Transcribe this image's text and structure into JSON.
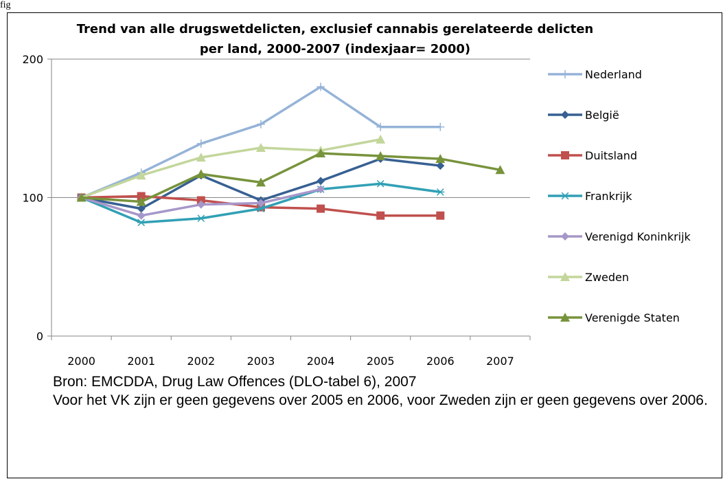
{
  "figure_label": "fig",
  "source": {
    "line1": "Bron: EMCDDA, Drug Law Offences (DLO-tabel 6), 2007",
    "line2": "Voor het VK zijn er geen gegevens over 2005 en 2006, voor Zweden zijn er geen gegevens over 2006."
  },
  "chart_data": {
    "type": "line",
    "title": "Trend van alle drugswetdelicten, exclusief cannabis gerelateerde delicten",
    "subtitle": "per land, 2000-2007 (indexjaar= 2000)",
    "xlabel": "",
    "ylabel": "",
    "categories": [
      "2000",
      "2001",
      "2002",
      "2003",
      "2004",
      "2005",
      "2006",
      "2007"
    ],
    "ylim": [
      0,
      200
    ],
    "yticks": [
      0,
      100,
      200
    ],
    "grid": "horizontal",
    "legend": "right",
    "series": [
      {
        "name": "Nederland",
        "color": "#95B3D7",
        "marker": "plus",
        "values": [
          100,
          118,
          139,
          153,
          180,
          151,
          151,
          null
        ]
      },
      {
        "name": "België",
        "color": "#376092",
        "marker": "diamond",
        "values": [
          100,
          92,
          116,
          98,
          112,
          128,
          123,
          null
        ]
      },
      {
        "name": "Duitsland",
        "color": "#C0504D",
        "marker": "square",
        "values": [
          100,
          101,
          98,
          93,
          92,
          87,
          87,
          null
        ]
      },
      {
        "name": "Frankrijk",
        "color": "#31A0B5",
        "marker": "asterisk",
        "values": [
          100,
          82,
          85,
          92,
          106,
          110,
          104,
          null
        ]
      },
      {
        "name": "Verenigd Koninkrijk",
        "color": "#A697C9",
        "marker": "diamond",
        "values": [
          100,
          87,
          95,
          96,
          106,
          null,
          null,
          null
        ]
      },
      {
        "name": "Zweden",
        "color": "#C3D69B",
        "marker": "triangle",
        "values": [
          100,
          116,
          129,
          136,
          134,
          142,
          null,
          null
        ]
      },
      {
        "name": "Verenigde Staten",
        "color": "#77933C",
        "marker": "triangle",
        "values": [
          100,
          97,
          117,
          111,
          132,
          130,
          128,
          120
        ]
      }
    ]
  }
}
